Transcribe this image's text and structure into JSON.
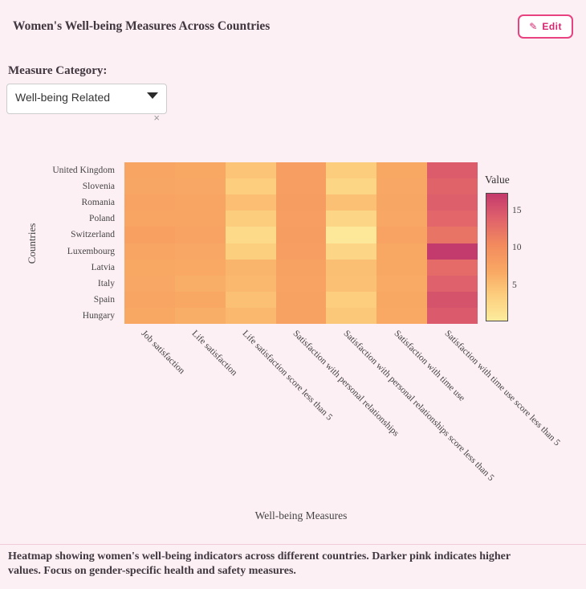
{
  "page": {
    "title": "Women's Well-being Measures Across Countries",
    "accent_color": "#d6246e",
    "background_color": "#fdf0f5"
  },
  "toolbar": {
    "edit_label": "Edit",
    "edit_icon": "pencil-icon"
  },
  "controls": {
    "label": "Measure Category:",
    "dropdown": {
      "selected": "Well-being Related",
      "arrow_icon": "chevron-down-icon",
      "clear_icon": "×"
    }
  },
  "chart_data": {
    "type": "heatmap",
    "xlabel": "Well-being Measures",
    "ylabel": "Countries",
    "rows": [
      "United Kingdom",
      "Slovenia",
      "Romania",
      "Poland",
      "Switzerland",
      "Luxembourg",
      "Latvia",
      "Italy",
      "Spain",
      "Hungary"
    ],
    "columns": [
      "Job satisfaction",
      "Life satisfaction",
      "Life satisfaction score less than 5",
      "Satisfaction with personal relationships",
      "Satisfaction with personal relationships score less than 5",
      "Satisfaction with time use",
      "Satisfaction with time use score less than 5"
    ],
    "values": [
      [
        7.4,
        7.0,
        4.6,
        8.1,
        3.9,
        7.0,
        14.4
      ],
      [
        7.2,
        7.1,
        3.8,
        8.0,
        3.0,
        7.1,
        13.8
      ],
      [
        7.5,
        7.3,
        5.1,
        8.2,
        4.9,
        7.2,
        14.2
      ],
      [
        7.4,
        7.4,
        3.9,
        8.0,
        2.9,
        7.1,
        13.6
      ],
      [
        7.9,
        7.6,
        2.4,
        8.2,
        0.8,
        7.5,
        12.4
      ],
      [
        7.4,
        7.1,
        3.7,
        8.0,
        2.9,
        7.0,
        17.3
      ],
      [
        7.0,
        6.8,
        5.8,
        7.7,
        5.0,
        6.9,
        13.2
      ],
      [
        7.1,
        6.4,
        5.7,
        7.5,
        4.9,
        6.7,
        14.0
      ],
      [
        7.3,
        6.9,
        4.9,
        7.8,
        3.8,
        7.0,
        15.2
      ],
      [
        7.0,
        6.4,
        5.6,
        7.8,
        4.3,
        6.8,
        14.6
      ]
    ],
    "colorbar": {
      "title": "Value",
      "ticks": [
        5,
        10,
        15
      ],
      "domain": [
        0.4,
        17.3
      ]
    },
    "colorscale": [
      [
        0.0,
        "#FCEC9C"
      ],
      [
        0.2,
        "#FCCE7E"
      ],
      [
        0.38,
        "#F9A964"
      ],
      [
        0.6,
        "#F28A5E"
      ],
      [
        0.82,
        "#DE5E6C"
      ],
      [
        1.0,
        "#C33A6C"
      ]
    ],
    "legend_position": "right",
    "grid": false
  },
  "footer": {
    "text": "Heatmap showing women's well-being indicators across different countries. Darker pink indicates higher values. Focus on gender-specific health and safety measures."
  }
}
